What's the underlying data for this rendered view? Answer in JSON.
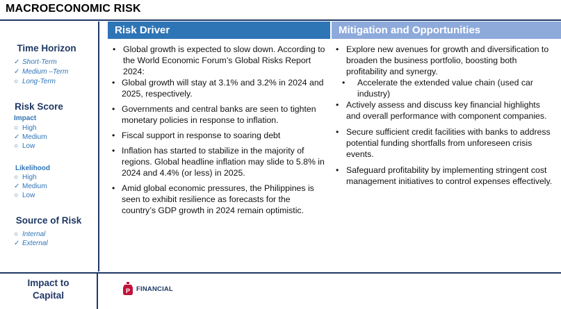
{
  "title": "MACROECONOMIC RISK",
  "sidebar": {
    "time_horizon": {
      "heading": "Time Horizon",
      "options": [
        {
          "mark": "✓",
          "label": "Short-Term"
        },
        {
          "mark": "✓",
          "label": "Medium –Term"
        },
        {
          "mark": "○",
          "label": "Long-Term"
        }
      ]
    },
    "risk_score": {
      "heading": "Risk Score",
      "impact": {
        "label": "Impact",
        "options": [
          {
            "mark": "○",
            "label": "High"
          },
          {
            "mark": "✓",
            "label": "Medium"
          },
          {
            "mark": "○",
            "label": "Low"
          }
        ]
      },
      "likelihood": {
        "label": "Likelihood",
        "options": [
          {
            "mark": "○",
            "label": "High"
          },
          {
            "mark": "✓",
            "label": "Medium"
          },
          {
            "mark": "○",
            "label": "Low"
          }
        ]
      }
    },
    "source": {
      "heading": "Source of Risk",
      "options": [
        {
          "mark": "○",
          "label": "Internal"
        },
        {
          "mark": "✓",
          "label": "External"
        }
      ]
    }
  },
  "risk_driver": {
    "heading": "Risk Driver",
    "intro": "Global growth is expected to slow down. According to the World Economic Forum’s Global Risks Report 2024:",
    "points": [
      "Global growth will stay at 3.1% and 3.2% in 2024 and 2025, respectively.",
      "Governments and central banks are seen to tighten monetary policies in response to inflation.",
      "Fiscal support in response to soaring debt",
      "Inflation has started to stabilize in the majority of regions. Global headline inflation may slide to 5.8% in 2024 and 4.4% (or less) in 2025.",
      "Amid global economic pressures, the Philippines is seen to exhibit resilience as forecasts for the country’s GDP growth in 2024 remain optimistic."
    ]
  },
  "mitigation": {
    "heading": "Mitigation and Opportunities",
    "point1": "Explore new avenues for growth and diversification to broaden the business portfolio, boosting both profitability and synergy.",
    "point1_sub": "Accelerate the extended value chain (used car industry)",
    "point2": "Actively assess and discuss key financial highlights and overall performance with component companies.",
    "point3": "Secure sufficient credit facilities with banks to address potential funding shortfalls from unforeseen crisis events.",
    "point4": "Safeguard profitability by implementing stringent cost management initiatives to control expenses effectively."
  },
  "impact_to_capital": {
    "label": "Impact to Capital",
    "logo_text": "FINANCIAL",
    "logo_letter": "P"
  },
  "colors": {
    "navy": "#1f3864",
    "blue": "#2e75b6",
    "light_blue": "#8eaadb",
    "logo_red": "#c0143c"
  }
}
